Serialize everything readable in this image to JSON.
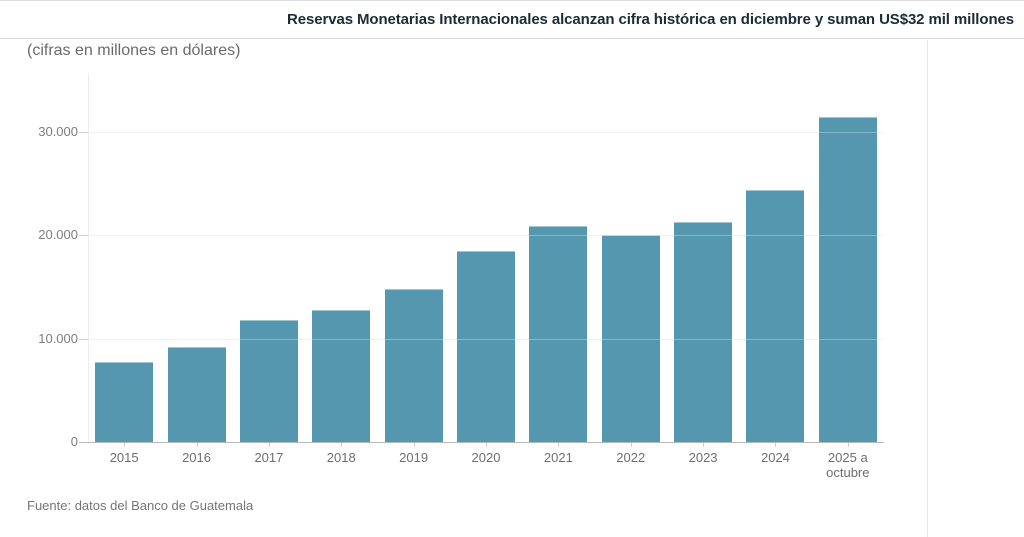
{
  "header": {
    "title": "Reservas Monetarias Internacionales alcanzan cifra histórica en diciembre y suman US$32 mil millones"
  },
  "chart": {
    "subtitle": "(cifras en millones en dólares)",
    "source": "Fuente: datos del Banco de Guatemala"
  },
  "chart_data": {
    "type": "bar",
    "title": "Reservas Monetarias Internacionales alcanzan cifra histórica en diciembre y suman US$32 mil millones",
    "subtitle": "(cifras en millones en dólares)",
    "source": "Fuente: datos del Banco de Guatemala",
    "categories": [
      "2015",
      "2016",
      "2017",
      "2018",
      "2019",
      "2020",
      "2021",
      "2022",
      "2023",
      "2024",
      "2025 a octubre"
    ],
    "values": [
      7750,
      9160,
      11770,
      12760,
      14790,
      18470,
      20940,
      20060,
      21300,
      24400,
      31500
    ],
    "unit": "millones de dólares",
    "xlabel": "",
    "ylabel": "",
    "ylim": [
      0,
      33000
    ],
    "y_ticks": [
      {
        "value": 0,
        "label": "0"
      },
      {
        "value": 10000,
        "label": "10.000"
      },
      {
        "value": 20000,
        "label": "20.000"
      },
      {
        "value": 30000,
        "label": "30.000"
      }
    ],
    "bar_color": "#5497af",
    "grid": true,
    "legend": "none"
  }
}
